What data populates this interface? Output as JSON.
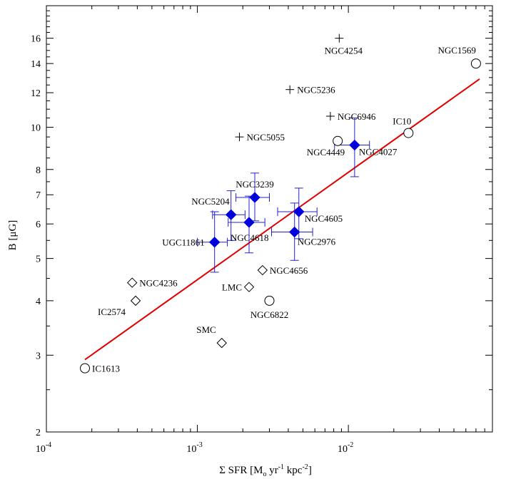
{
  "chart_data": {
    "type": "scatter",
    "xlabel": "Σ SFR [M",
    "xlabel_sub": "o",
    "xlabel_unit": "yr",
    "xlabel_sup1": "-1",
    "xlabel_unit2": "kpc",
    "xlabel_sup2": "-2",
    "xlabel_end": "]",
    "ylabel": "B [μG]",
    "x_scale": "log",
    "y_scale": "log",
    "xlim": [
      0.0001,
      0.09
    ],
    "ylim": [
      2,
      19
    ],
    "grid": false,
    "x_ticks": [
      {
        "value": 0.0001,
        "base": "10",
        "exp": "-4"
      },
      {
        "value": 0.001,
        "base": "10",
        "exp": "-3"
      },
      {
        "value": 0.01,
        "base": "10",
        "exp": "-2"
      }
    ],
    "y_ticks": [
      {
        "value": 2,
        "label": "2"
      },
      {
        "value": 3,
        "label": "3"
      },
      {
        "value": 4,
        "label": "4"
      },
      {
        "value": 5,
        "label": "5"
      },
      {
        "value": 6,
        "label": "6"
      },
      {
        "value": 7,
        "label": "7"
      },
      {
        "value": 8,
        "label": "8"
      },
      {
        "value": 10,
        "label": "10"
      },
      {
        "value": 12,
        "label": "12"
      },
      {
        "value": 14,
        "label": "14"
      },
      {
        "value": 16,
        "label": "16"
      }
    ],
    "fit_line": {
      "color": "#e00000",
      "x": [
        0.00018,
        0.074
      ],
      "y": [
        2.93,
        12.9
      ]
    },
    "error_color": "#2222cc",
    "marker_color": "#0000dd",
    "series": [
      {
        "marker": "circle",
        "points": [
          {
            "name": "IC1613",
            "x": 0.00018,
            "y": 2.8
          },
          {
            "name": "NGC6822",
            "x": 0.003,
            "y": 4.0
          },
          {
            "name": "NGC4449",
            "x": 0.0085,
            "y": 9.3
          },
          {
            "name": "IC10",
            "x": 0.025,
            "y": 9.7
          },
          {
            "name": "NGC1569",
            "x": 0.07,
            "y": 14.0
          }
        ]
      },
      {
        "marker": "diamond",
        "points": [
          {
            "name": "NGC4236",
            "x": 0.00037,
            "y": 4.4
          },
          {
            "name": "IC2574",
            "x": 0.00039,
            "y": 4.0
          },
          {
            "name": "SMC",
            "x": 0.00145,
            "y": 3.2
          },
          {
            "name": "LMC",
            "x": 0.0022,
            "y": 4.3
          },
          {
            "name": "NGC4656",
            "x": 0.0027,
            "y": 4.7
          }
        ]
      },
      {
        "marker": "plus",
        "points": [
          {
            "name": "NGC4254",
            "x": 0.0087,
            "y": 16.0
          },
          {
            "name": "NGC5236",
            "x": 0.0041,
            "y": 12.2
          },
          {
            "name": "NGC6946",
            "x": 0.0076,
            "y": 10.6
          },
          {
            "name": "NGC5055",
            "x": 0.0019,
            "y": 9.5
          }
        ]
      },
      {
        "marker": "filled-diamond",
        "points": [
          {
            "name": "NGC4027",
            "x": 0.011,
            "y": 9.1,
            "x_err": [
              0.0081,
              0.0138
            ],
            "y_err": [
              7.7,
              10.5
            ]
          },
          {
            "name": "NGC3239",
            "x": 0.0024,
            "y": 6.9,
            "x_err": [
              0.0018,
              0.003
            ],
            "y_err": [
              6.1,
              7.85
            ]
          },
          {
            "name": "NGC5204",
            "x": 0.00167,
            "y": 6.3,
            "x_err": [
              0.00126,
              0.00207
            ],
            "y_err": [
              5.5,
              7.15
            ]
          },
          {
            "name": "NGC4618",
            "x": 0.0022,
            "y": 6.05,
            "x_err": [
              0.0016,
              0.0028
            ],
            "y_err": [
              5.15,
              6.95
            ]
          },
          {
            "name": "UGC11861",
            "x": 0.0013,
            "y": 5.45,
            "x_err": [
              0.001,
              0.00158
            ],
            "y_err": [
              4.65,
              6.4
            ]
          },
          {
            "name": "NGC4605",
            "x": 0.0047,
            "y": 6.4,
            "x_err": [
              0.0034,
              0.0062
            ],
            "y_err": [
              5.55,
              7.25
            ]
          },
          {
            "name": "NGC2976",
            "x": 0.0044,
            "y": 5.75,
            "x_err": [
              0.0031,
              0.0058
            ],
            "y_err": [
              4.95,
              6.7
            ]
          }
        ]
      }
    ],
    "point_labels": [
      {
        "text": "IC1613",
        "anchor": "IC1613",
        "side": "right"
      },
      {
        "text": "NGC6822",
        "anchor": "NGC6822",
        "side": "below"
      },
      {
        "text": "NGC4449",
        "anchor": "NGC4449",
        "side": "below-left"
      },
      {
        "text": "IC10",
        "anchor": "IC10",
        "side": "above-left"
      },
      {
        "text": "NGC1569",
        "anchor": "NGC1569",
        "side": "above-left"
      },
      {
        "text": "NGC4236",
        "anchor": "NGC4236",
        "side": "right"
      },
      {
        "text": "IC2574",
        "anchor": "IC2574",
        "side": "below-left"
      },
      {
        "text": "SMC",
        "anchor": "SMC",
        "side": "above-left"
      },
      {
        "text": "LMC",
        "anchor": "LMC",
        "side": "left"
      },
      {
        "text": "NGC4656",
        "anchor": "NGC4656",
        "side": "right"
      },
      {
        "text": "NGC4254",
        "anchor": "NGC4254",
        "side": "below"
      },
      {
        "text": "NGC5236",
        "anchor": "NGC5236",
        "side": "right"
      },
      {
        "text": "NGC6946",
        "anchor": "NGC6946",
        "side": "right"
      },
      {
        "text": "NGC5055",
        "anchor": "NGC5055",
        "side": "right"
      },
      {
        "text": "NGC4027",
        "anchor": "NGC4027",
        "side": "below-right"
      },
      {
        "text": "NGC3239",
        "anchor": "NGC3239",
        "side": "above"
      },
      {
        "text": "NGC5204",
        "anchor": "NGC5204",
        "side": "above-left"
      },
      {
        "text": "NGC4618",
        "anchor": "NGC4618",
        "side": "below-right"
      },
      {
        "text": "UGC11861",
        "anchor": "UGC11861",
        "side": "left"
      },
      {
        "text": "NGC4605",
        "anchor": "NGC4605",
        "side": "below-right"
      },
      {
        "text": "NGC2976",
        "anchor": "NGC2976",
        "side": "below-right"
      }
    ]
  }
}
